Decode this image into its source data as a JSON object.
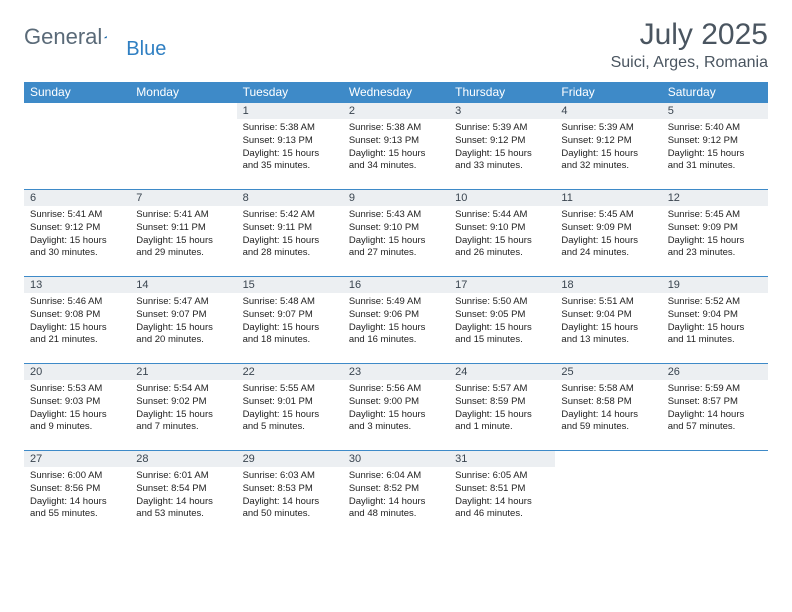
{
  "brand": {
    "left": "General",
    "right": "Blue"
  },
  "title": "July 2025",
  "location": "Suici, Arges, Romania",
  "colors": {
    "header_bg": "#3e8ac8",
    "header_fg": "#ffffff",
    "daynum_bg": "#eceff2",
    "border": "#3e8ac8",
    "logo_gray": "#5a6a78",
    "logo_blue": "#2f7fc2"
  },
  "weekdays": [
    "Sunday",
    "Monday",
    "Tuesday",
    "Wednesday",
    "Thursday",
    "Friday",
    "Saturday"
  ],
  "weeks": [
    [
      null,
      null,
      {
        "n": "1",
        "sr": "5:38 AM",
        "ss": "9:13 PM",
        "dl": "15 hours and 35 minutes."
      },
      {
        "n": "2",
        "sr": "5:38 AM",
        "ss": "9:13 PM",
        "dl": "15 hours and 34 minutes."
      },
      {
        "n": "3",
        "sr": "5:39 AM",
        "ss": "9:12 PM",
        "dl": "15 hours and 33 minutes."
      },
      {
        "n": "4",
        "sr": "5:39 AM",
        "ss": "9:12 PM",
        "dl": "15 hours and 32 minutes."
      },
      {
        "n": "5",
        "sr": "5:40 AM",
        "ss": "9:12 PM",
        "dl": "15 hours and 31 minutes."
      }
    ],
    [
      {
        "n": "6",
        "sr": "5:41 AM",
        "ss": "9:12 PM",
        "dl": "15 hours and 30 minutes."
      },
      {
        "n": "7",
        "sr": "5:41 AM",
        "ss": "9:11 PM",
        "dl": "15 hours and 29 minutes."
      },
      {
        "n": "8",
        "sr": "5:42 AM",
        "ss": "9:11 PM",
        "dl": "15 hours and 28 minutes."
      },
      {
        "n": "9",
        "sr": "5:43 AM",
        "ss": "9:10 PM",
        "dl": "15 hours and 27 minutes."
      },
      {
        "n": "10",
        "sr": "5:44 AM",
        "ss": "9:10 PM",
        "dl": "15 hours and 26 minutes."
      },
      {
        "n": "11",
        "sr": "5:45 AM",
        "ss": "9:09 PM",
        "dl": "15 hours and 24 minutes."
      },
      {
        "n": "12",
        "sr": "5:45 AM",
        "ss": "9:09 PM",
        "dl": "15 hours and 23 minutes."
      }
    ],
    [
      {
        "n": "13",
        "sr": "5:46 AM",
        "ss": "9:08 PM",
        "dl": "15 hours and 21 minutes."
      },
      {
        "n": "14",
        "sr": "5:47 AM",
        "ss": "9:07 PM",
        "dl": "15 hours and 20 minutes."
      },
      {
        "n": "15",
        "sr": "5:48 AM",
        "ss": "9:07 PM",
        "dl": "15 hours and 18 minutes."
      },
      {
        "n": "16",
        "sr": "5:49 AM",
        "ss": "9:06 PM",
        "dl": "15 hours and 16 minutes."
      },
      {
        "n": "17",
        "sr": "5:50 AM",
        "ss": "9:05 PM",
        "dl": "15 hours and 15 minutes."
      },
      {
        "n": "18",
        "sr": "5:51 AM",
        "ss": "9:04 PM",
        "dl": "15 hours and 13 minutes."
      },
      {
        "n": "19",
        "sr": "5:52 AM",
        "ss": "9:04 PM",
        "dl": "15 hours and 11 minutes."
      }
    ],
    [
      {
        "n": "20",
        "sr": "5:53 AM",
        "ss": "9:03 PM",
        "dl": "15 hours and 9 minutes."
      },
      {
        "n": "21",
        "sr": "5:54 AM",
        "ss": "9:02 PM",
        "dl": "15 hours and 7 minutes."
      },
      {
        "n": "22",
        "sr": "5:55 AM",
        "ss": "9:01 PM",
        "dl": "15 hours and 5 minutes."
      },
      {
        "n": "23",
        "sr": "5:56 AM",
        "ss": "9:00 PM",
        "dl": "15 hours and 3 minutes."
      },
      {
        "n": "24",
        "sr": "5:57 AM",
        "ss": "8:59 PM",
        "dl": "15 hours and 1 minute."
      },
      {
        "n": "25",
        "sr": "5:58 AM",
        "ss": "8:58 PM",
        "dl": "14 hours and 59 minutes."
      },
      {
        "n": "26",
        "sr": "5:59 AM",
        "ss": "8:57 PM",
        "dl": "14 hours and 57 minutes."
      }
    ],
    [
      {
        "n": "27",
        "sr": "6:00 AM",
        "ss": "8:56 PM",
        "dl": "14 hours and 55 minutes."
      },
      {
        "n": "28",
        "sr": "6:01 AM",
        "ss": "8:54 PM",
        "dl": "14 hours and 53 minutes."
      },
      {
        "n": "29",
        "sr": "6:03 AM",
        "ss": "8:53 PM",
        "dl": "14 hours and 50 minutes."
      },
      {
        "n": "30",
        "sr": "6:04 AM",
        "ss": "8:52 PM",
        "dl": "14 hours and 48 minutes."
      },
      {
        "n": "31",
        "sr": "6:05 AM",
        "ss": "8:51 PM",
        "dl": "14 hours and 46 minutes."
      },
      null,
      null
    ]
  ],
  "labels": {
    "sunrise": "Sunrise: ",
    "sunset": "Sunset: ",
    "daylight": "Daylight: "
  }
}
